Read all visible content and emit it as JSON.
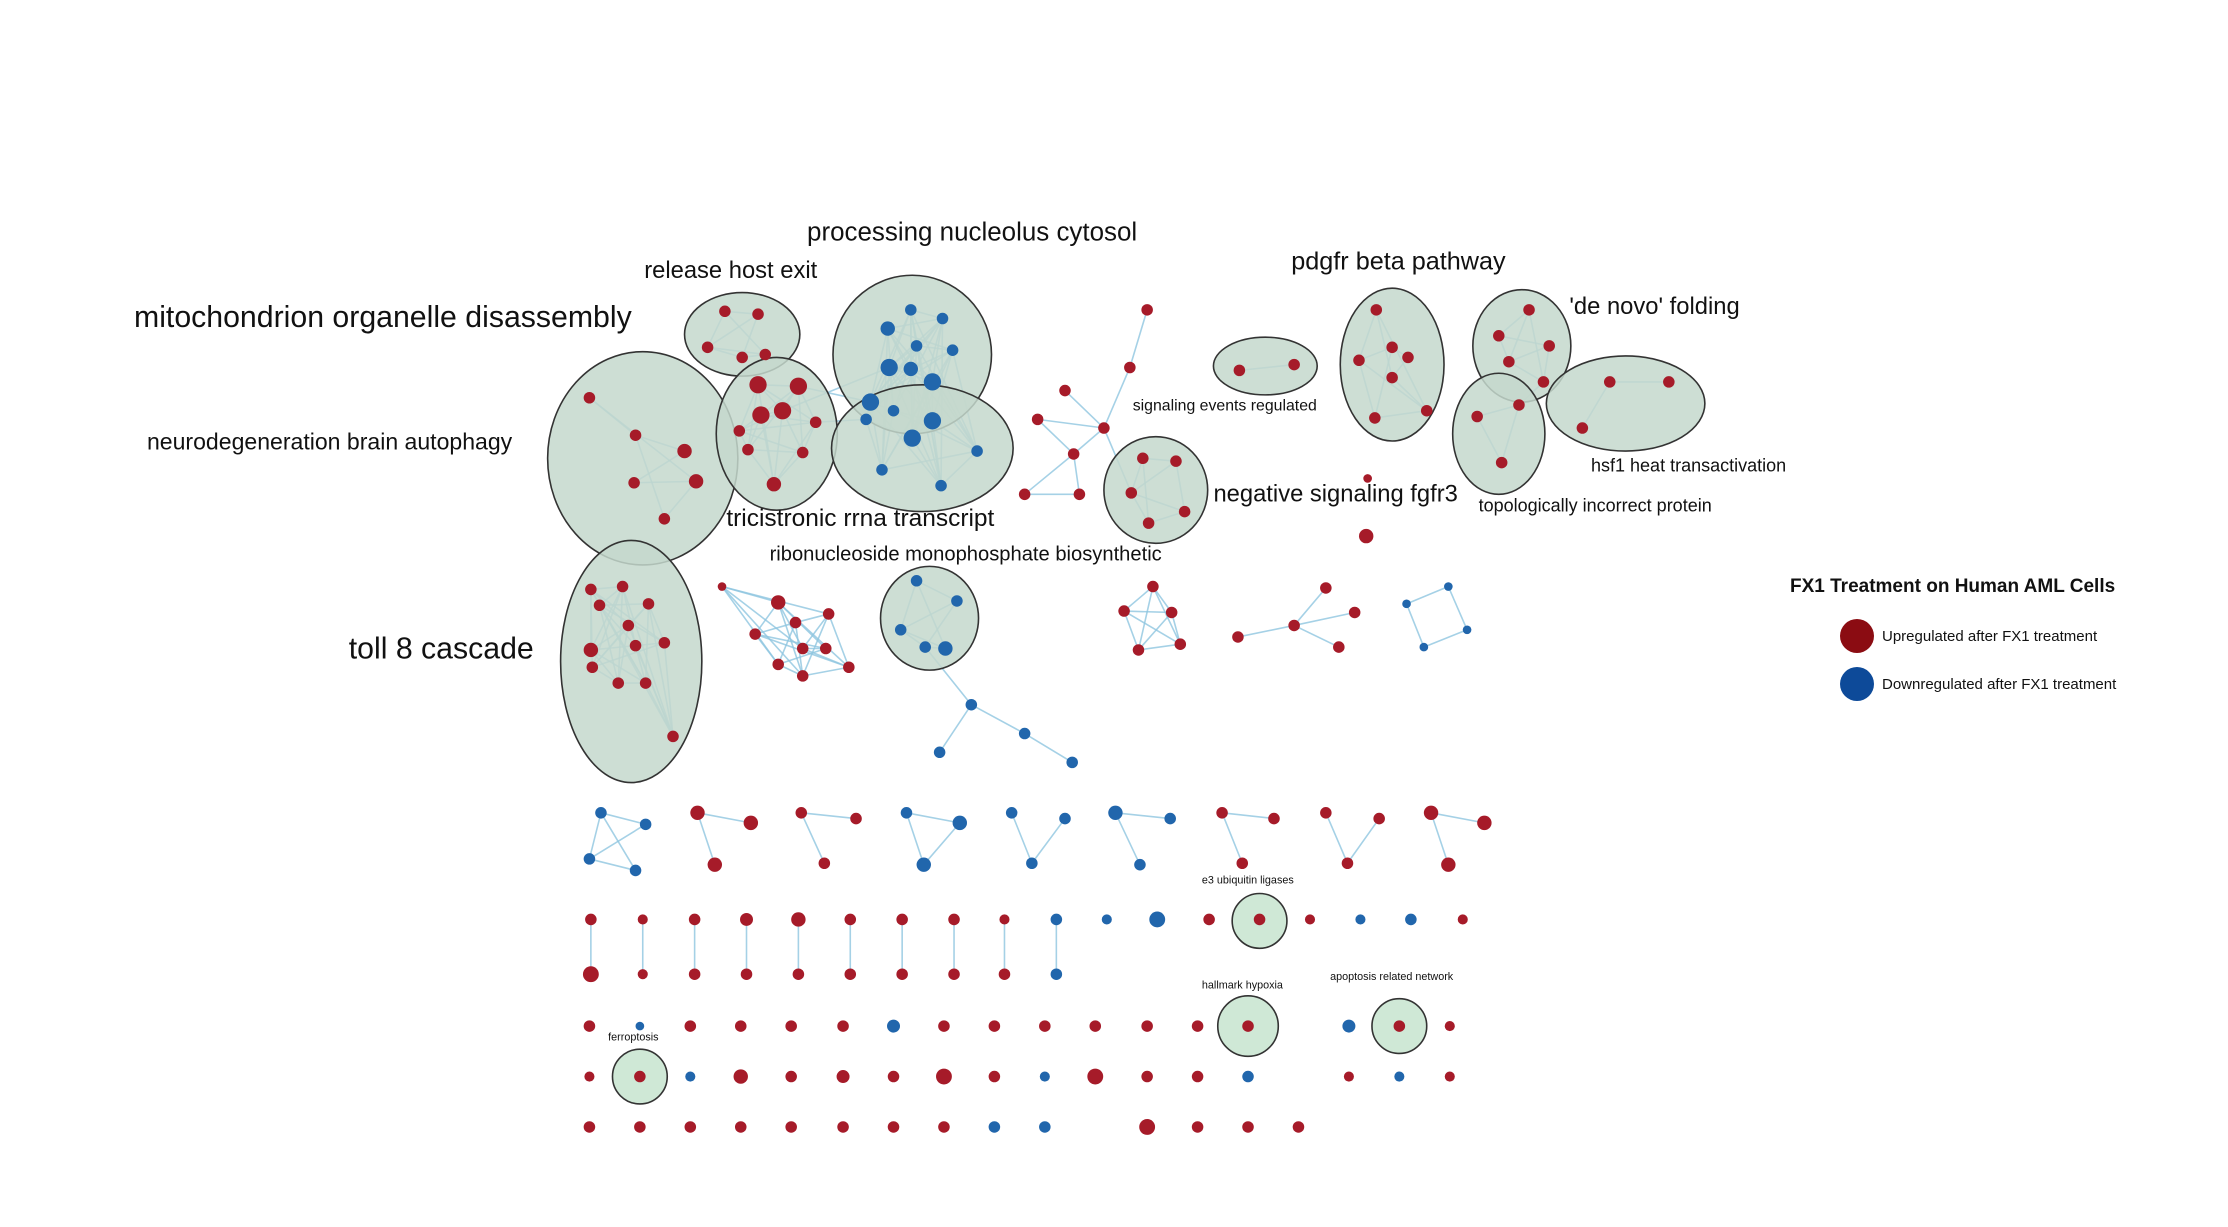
{
  "colors": {
    "up": "#a61b29",
    "down": "#2166ac",
    "edge": "#8ec5e0",
    "cluster_fill": "#c4d8cc",
    "cluster_stroke": "#333333",
    "small_cluster_fill": "#cfe8d6"
  },
  "clusters": [
    {
      "id": "mitochondrion",
      "label": "mitochondrion organelle disassembly"
    },
    {
      "id": "release",
      "label": "release host exit"
    },
    {
      "id": "processing",
      "label": "processing nucleolus cytosol"
    },
    {
      "id": "pdgfr",
      "label": "pdgfr beta pathway"
    },
    {
      "id": "denovo",
      "label": "'de novo' folding"
    },
    {
      "id": "neuro",
      "label": "neurodegeneration brain autophagy"
    },
    {
      "id": "signaling",
      "label": "signaling events regulated"
    },
    {
      "id": "hsf1",
      "label": "hsf1 heat transactivation"
    },
    {
      "id": "topo",
      "label": "topologically incorrect protein"
    },
    {
      "id": "negfgfr3",
      "label": "negative signaling fgfr3"
    },
    {
      "id": "tricistronic",
      "label": "tricistronic rrna transcript"
    },
    {
      "id": "ribonucleoside",
      "label": "ribonucleoside monophosphate biosynthetic"
    },
    {
      "id": "toll",
      "label": "toll 8 cascade"
    },
    {
      "id": "e3",
      "label": "e3 ubiquitin ligases"
    },
    {
      "id": "hypoxia",
      "label": "hallmark hypoxia"
    },
    {
      "id": "apoptosis",
      "label": "apoptosis related network"
    },
    {
      "id": "ferroptosis",
      "label": "ferroptosis"
    }
  ],
  "legend": {
    "title": "FX1 Treatment on Human AML Cells",
    "items": [
      {
        "label": "Upregulated after FX1 treatment",
        "color": "#8b0c12"
      },
      {
        "label": "Downregulated after FX1 treatment",
        "color": "#0d4a99"
      }
    ]
  }
}
